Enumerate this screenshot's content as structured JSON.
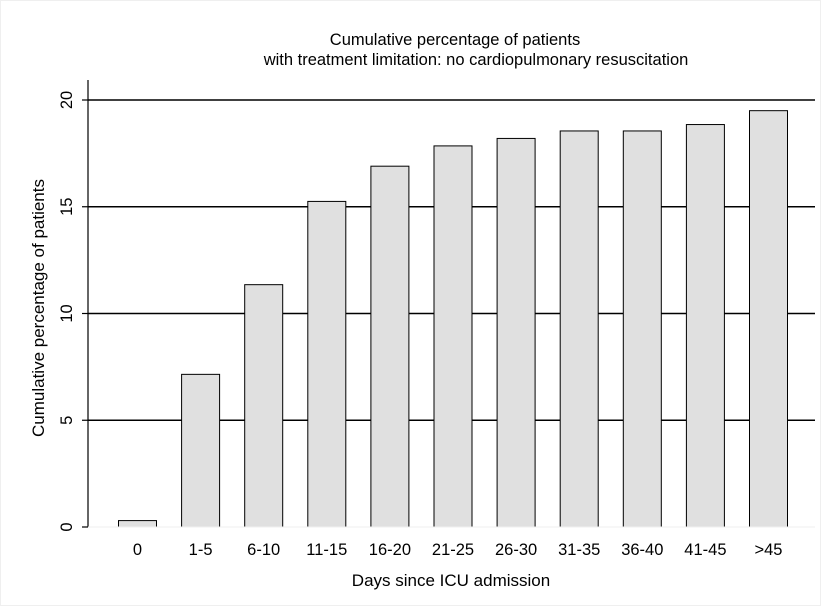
{
  "chart_data": {
    "type": "bar",
    "title_lines": [
      "Cumulative percentage of patients",
      "with treatment limitation: no cardiopulmonary resuscitation"
    ],
    "xlabel": "Days since ICU admission",
    "ylabel": "Cumulative percentage of patients",
    "categories": [
      "0",
      "1-5",
      "6-10",
      "11-15",
      "16-20",
      "21-25",
      "26-30",
      "31-35",
      "36-40",
      "41-45",
      ">45"
    ],
    "values": [
      0.3,
      7.15,
      11.35,
      15.25,
      16.9,
      17.85,
      18.2,
      18.55,
      18.55,
      18.85,
      19.5
    ],
    "ylim": [
      0,
      20
    ],
    "yticks": [
      0,
      5,
      10,
      15,
      20
    ],
    "ytick_labels": [
      "0",
      "5",
      "10",
      "15",
      "20"
    ],
    "grid": "horizontal",
    "colors": {
      "bar_fill": "#e0e0e0",
      "bar_stroke": "#000000",
      "grid": "#000000",
      "frame": "#efefef"
    }
  }
}
